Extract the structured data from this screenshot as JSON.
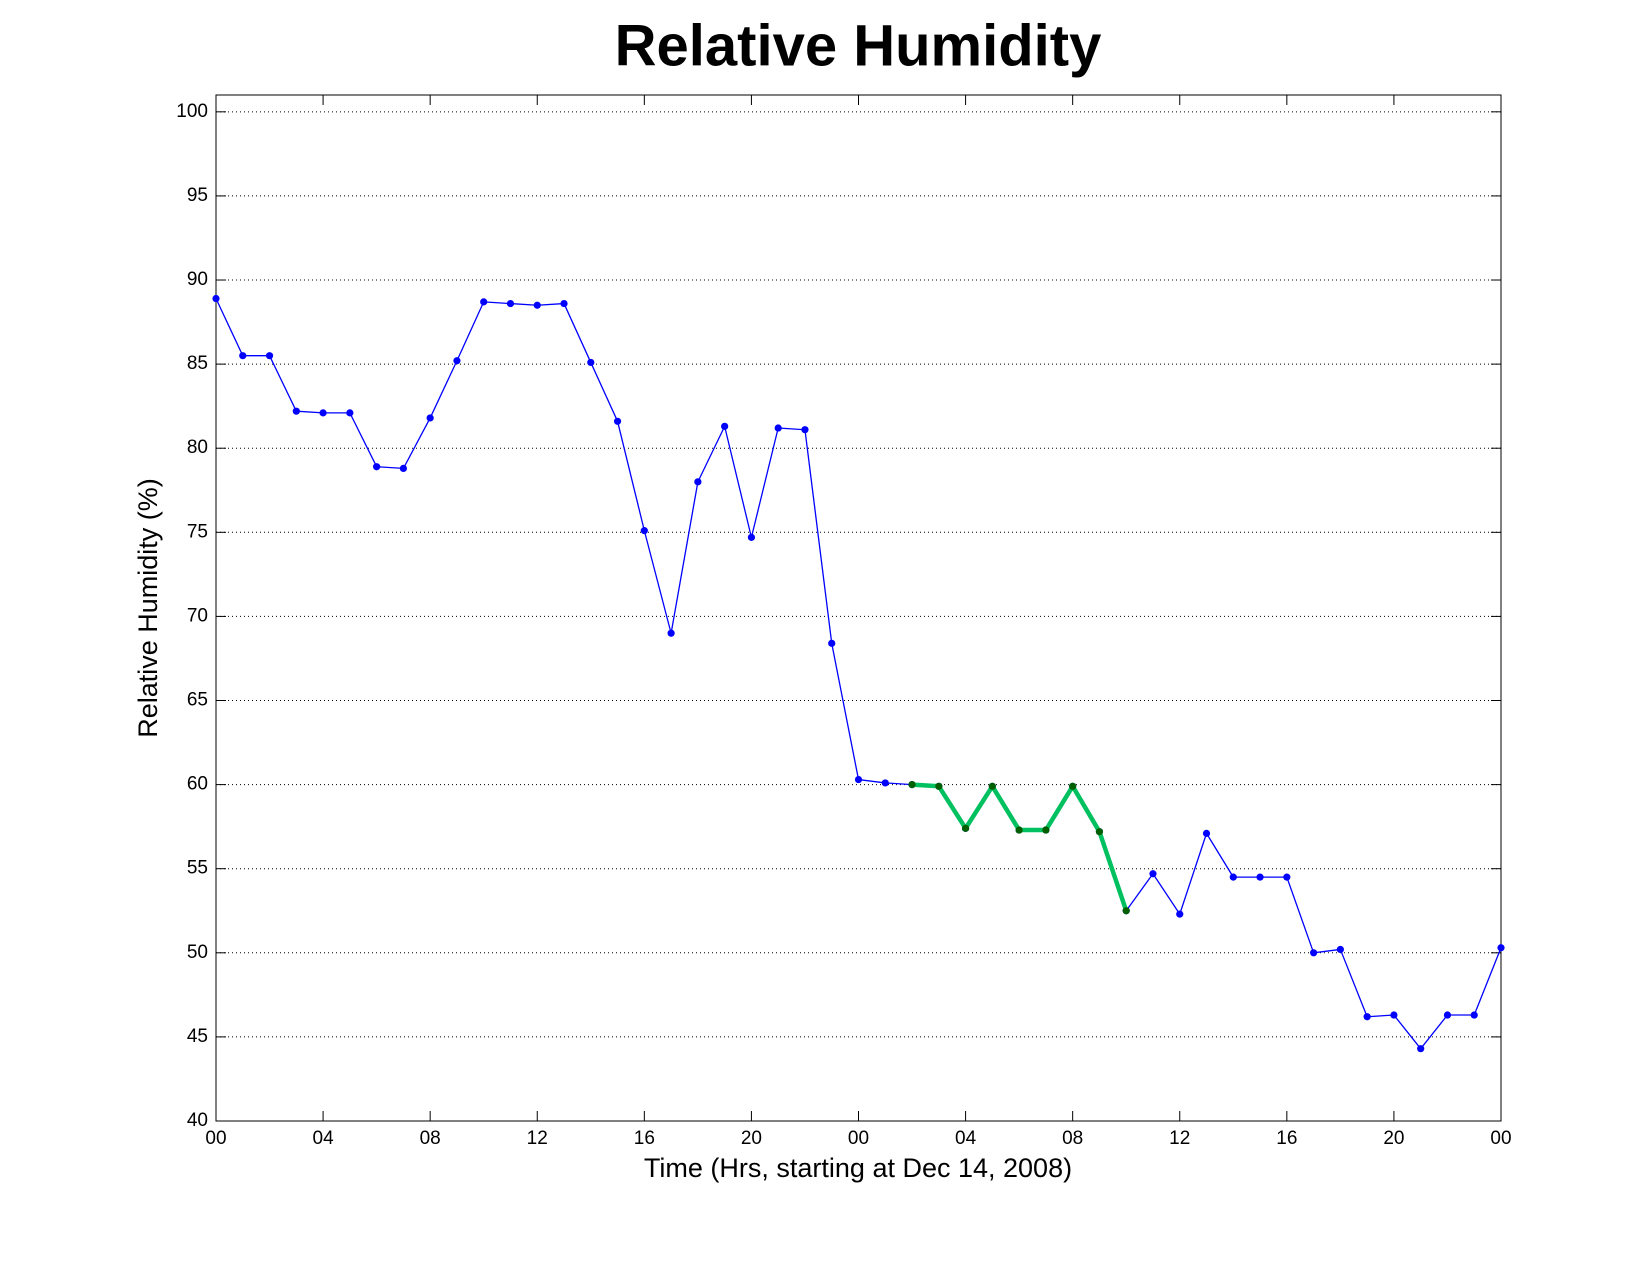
{
  "chart_data": {
    "type": "line",
    "title": "Relative Humidity",
    "xlabel": "Time (Hrs, starting at Dec 14, 2008)",
    "ylabel": "Relative Humidity (%)",
    "x": [
      0,
      1,
      2,
      3,
      4,
      5,
      6,
      7,
      8,
      9,
      10,
      11,
      12,
      13,
      14,
      15,
      16,
      17,
      18,
      19,
      20,
      21,
      22,
      23,
      24,
      25,
      26,
      27,
      28,
      29,
      30,
      31,
      32,
      33,
      34,
      35,
      36,
      37,
      38,
      39,
      40,
      41,
      42,
      43,
      44,
      45,
      46,
      47,
      48
    ],
    "series": [
      {
        "color": "#0000ff",
        "marker_color": "#0000ff",
        "values": [
          88.9,
          85.5,
          85.5,
          82.2,
          82.1,
          82.1,
          78.9,
          78.8,
          81.8,
          85.2,
          88.7,
          88.6,
          88.5,
          88.6,
          85.1,
          81.6,
          75.1,
          69.0,
          78.0,
          81.3,
          74.7,
          81.2,
          81.1,
          68.4,
          60.3,
          60.1,
          60.0,
          59.9,
          57.4,
          59.9,
          57.3,
          57.3,
          59.9,
          57.2,
          52.5,
          54.7,
          52.3,
          57.1,
          54.5,
          54.5,
          54.5,
          50.0,
          50.2,
          46.2,
          46.3,
          44.3,
          46.3,
          46.3,
          50.3
        ]
      },
      {
        "color": "#00c060",
        "marker_color": "#006000",
        "values": [
          null,
          null,
          null,
          null,
          null,
          null,
          null,
          null,
          null,
          null,
          null,
          null,
          null,
          null,
          null,
          null,
          null,
          null,
          null,
          null,
          null,
          null,
          null,
          null,
          null,
          null,
          60.0,
          59.9,
          57.4,
          59.9,
          57.3,
          57.3,
          59.9,
          57.2,
          52.5,
          null,
          null,
          null,
          null,
          null,
          null,
          null,
          null,
          null,
          null,
          null,
          null,
          null,
          null
        ]
      }
    ],
    "xlim": [
      0,
      48
    ],
    "ylim": [
      40,
      101
    ],
    "xticks": [
      {
        "value": 0,
        "label": "00"
      },
      {
        "value": 4,
        "label": "04"
      },
      {
        "value": 8,
        "label": "08"
      },
      12,
      16,
      20,
      {
        "value": 24,
        "label": "00"
      },
      {
        "value": 28,
        "label": "04"
      },
      {
        "value": 32,
        "label": "08"
      },
      {
        "value": 36,
        "label": "12"
      },
      {
        "value": 40,
        "label": "16"
      },
      {
        "value": 44,
        "label": "20"
      },
      {
        "value": 48,
        "label": "00"
      }
    ],
    "yticks": [
      40,
      45,
      50,
      55,
      60,
      65,
      70,
      75,
      80,
      85,
      90,
      95,
      100
    ],
    "grid": true
  }
}
